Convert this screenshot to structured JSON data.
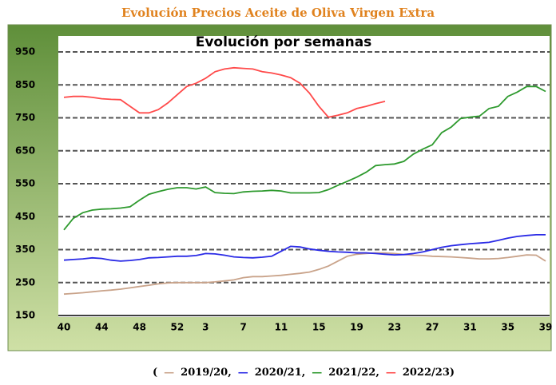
{
  "chart_data": {
    "type": "line",
    "title": "Evolución Precios Aceite de Oliva Virgen Extra",
    "subtitle": "Evolución por semanas",
    "categories": [
      "40",
      null,
      null,
      null,
      "44",
      null,
      null,
      null,
      "48",
      null,
      null,
      null,
      "52",
      null,
      null,
      "3",
      null,
      null,
      null,
      "7",
      null,
      null,
      null,
      "11",
      null,
      null,
      null,
      "15",
      null,
      null,
      null,
      "19",
      null,
      null,
      null,
      "23",
      null,
      null,
      null,
      "27",
      null,
      null,
      null,
      "31",
      null,
      null,
      null,
      "35",
      null,
      null,
      null,
      "39"
    ],
    "series": [
      {
        "name": "2019/20",
        "color": "#c9a38a",
        "values": [
          215,
          217,
          219,
          222,
          225,
          227,
          230,
          234,
          238,
          242,
          246,
          249,
          250,
          250,
          250,
          250,
          252,
          255,
          258,
          265,
          268,
          268,
          270,
          272,
          275,
          278,
          282,
          290,
          300,
          315,
          330,
          336,
          338,
          340,
          340,
          338,
          335,
          333,
          332,
          330,
          329,
          328,
          326,
          324,
          322,
          322,
          323,
          326,
          330,
          334,
          333,
          315
        ]
      },
      {
        "name": "2020/21",
        "color": "#2a2ae6",
        "values": [
          318,
          320,
          322,
          325,
          323,
          318,
          315,
          317,
          320,
          325,
          326,
          328,
          330,
          330,
          332,
          338,
          337,
          333,
          328,
          326,
          325,
          327,
          330,
          345,
          360,
          358,
          352,
          348,
          345,
          343,
          342,
          340,
          340,
          338,
          336,
          334,
          335,
          338,
          343,
          350,
          357,
          362,
          365,
          368,
          370,
          372,
          378,
          385,
          390,
          393,
          395,
          395
        ]
      },
      {
        "name": "2021/22",
        "color": "#2e9a2e",
        "values": [
          410,
          445,
          462,
          470,
          473,
          474,
          476,
          480,
          500,
          518,
          526,
          533,
          538,
          538,
          534,
          540,
          523,
          521,
          520,
          525,
          527,
          528,
          530,
          528,
          522,
          522,
          522,
          523,
          532,
          545,
          557,
          570,
          585,
          605,
          608,
          610,
          618,
          640,
          655,
          668,
          705,
          722,
          748,
          752,
          755,
          778,
          785,
          815,
          828,
          845,
          845,
          830
        ]
      },
      {
        "name": "2022/23",
        "color": "#ff4a4a",
        "values": [
          812,
          815,
          815,
          812,
          808,
          806,
          805,
          785,
          765,
          765,
          775,
          795,
          820,
          845,
          855,
          870,
          890,
          898,
          902,
          900,
          898,
          890,
          886,
          880,
          872,
          855,
          825,
          785,
          752,
          758,
          765,
          778,
          785,
          793,
          800,
          null,
          null,
          null,
          null,
          null,
          null,
          null,
          null,
          null,
          null,
          null,
          null,
          null,
          null,
          null,
          null,
          null
        ]
      }
    ],
    "ylim": [
      150,
      950
    ],
    "yticks": [
      150,
      250,
      350,
      450,
      550,
      650,
      750,
      850,
      950
    ],
    "grid": true,
    "legend_prefix": "(",
    "legend_separator": ",",
    "legend_suffix": ")"
  }
}
